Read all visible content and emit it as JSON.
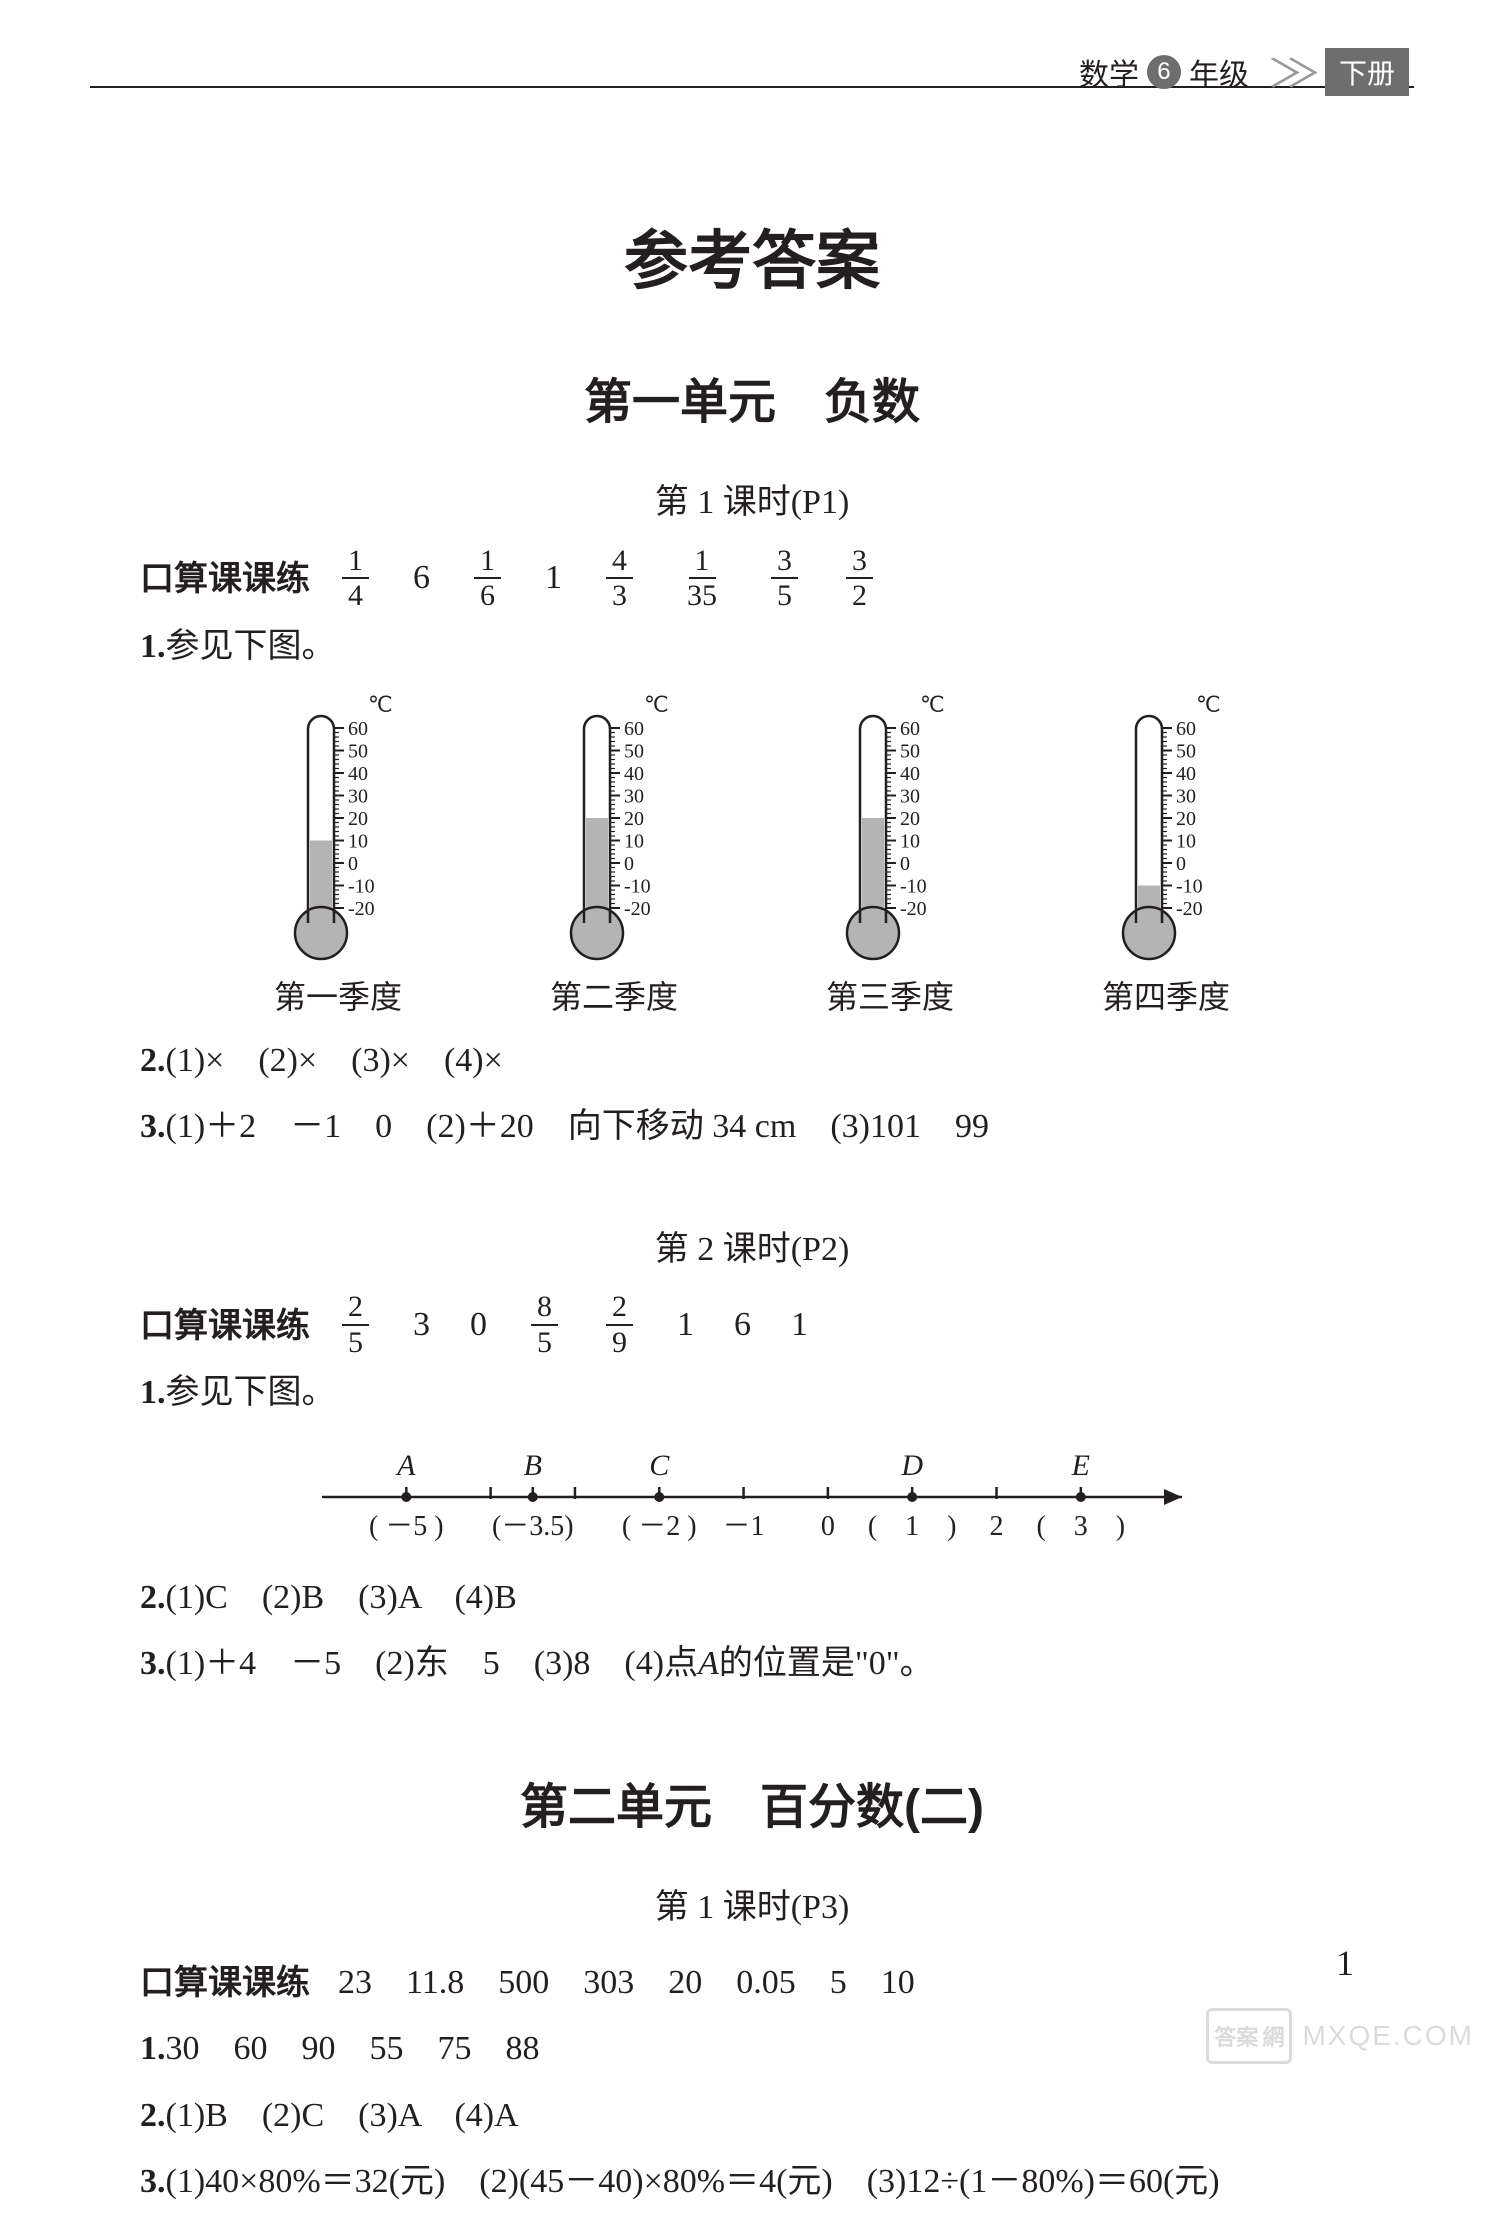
{
  "header": {
    "subject": "数学",
    "grade_num": "6",
    "grade_suffix": "年级",
    "volume": "下册"
  },
  "main_title": "参考答案",
  "unit1": {
    "title": "第一单元　负数",
    "lesson1": {
      "heading": "第 1 课时(P1)",
      "kousuan_label": "口算课课练",
      "kousuan_values": [
        {
          "type": "frac",
          "n": "1",
          "d": "4"
        },
        {
          "type": "txt",
          "v": "6"
        },
        {
          "type": "frac",
          "n": "1",
          "d": "6"
        },
        {
          "type": "txt",
          "v": "1"
        },
        {
          "type": "frac",
          "n": "4",
          "d": "3"
        },
        {
          "type": "frac",
          "n": "1",
          "d": "35"
        },
        {
          "type": "frac",
          "n": "3",
          "d": "5"
        },
        {
          "type": "frac",
          "n": "3",
          "d": "2"
        }
      ],
      "q1_label": "1.",
      "q1_text": " 参见下图。",
      "thermometers": {
        "unit_label": "℃",
        "scale_labels": [
          "60",
          "50",
          "40",
          "30",
          "20",
          "10",
          "0",
          "-10",
          "-20"
        ],
        "scale_min": -20,
        "scale_max": 60,
        "fill_color": "#b4b4b4",
        "tube_stroke": "#231f20",
        "items": [
          {
            "caption": "第一季度",
            "value": 10
          },
          {
            "caption": "第二季度",
            "value": 20
          },
          {
            "caption": "第三季度",
            "value": 20
          },
          {
            "caption": "第四季度",
            "value": -10
          }
        ]
      },
      "q2": "2. (1)×　(2)×　(3)×　(4)×",
      "q3": "3. (1)＋2　－1　0　(2)＋20　向下移动 34 cm　(3)101　99"
    },
    "lesson2": {
      "heading": "第 2 课时(P2)",
      "kousuan_label": "口算课课练",
      "kousuan_values": [
        {
          "type": "frac",
          "n": "2",
          "d": "5"
        },
        {
          "type": "txt",
          "v": "3"
        },
        {
          "type": "txt",
          "v": "0"
        },
        {
          "type": "frac",
          "n": "8",
          "d": "5"
        },
        {
          "type": "frac",
          "n": "2",
          "d": "9"
        },
        {
          "type": "txt",
          "v": "1"
        },
        {
          "type": "txt",
          "v": "6"
        },
        {
          "type": "txt",
          "v": "1"
        }
      ],
      "q1_label": "1.",
      "q1_text": " 参见下图。",
      "number_line": {
        "min": -6,
        "max": 4.2,
        "ticks": [
          -5,
          -4,
          -3,
          -2,
          -1,
          0,
          1,
          2,
          3
        ],
        "halftick": -3.5,
        "points": [
          {
            "label": "A",
            "x": -5,
            "below": "( －5 )"
          },
          {
            "label": "B",
            "x": -3.5,
            "below": "(－3.5)"
          },
          {
            "label": "C",
            "x": -2,
            "below": "( －2 )"
          },
          {
            "label": "",
            "x": -1,
            "below": "－1",
            "plain": true
          },
          {
            "label": "",
            "x": 0,
            "below": "0",
            "plain": true
          },
          {
            "label": "D",
            "x": 1,
            "below": "(　1　)"
          },
          {
            "label": "",
            "x": 2,
            "below": "2",
            "plain": true
          },
          {
            "label": "E",
            "x": 3,
            "below": "(　3　)"
          }
        ],
        "stroke": "#231f20"
      },
      "q2": "2. (1)C　(2)B　(3)A　(4)B",
      "q3_pre": "3. (1)＋4　－5　(2)东　5　(3)8　(4)点 ",
      "q3_ital": "A",
      "q3_post": " 的位置是\"0\"。"
    }
  },
  "unit2": {
    "title": "第二单元　百分数(二)",
    "lesson1": {
      "heading": "第 1 课时(P3)",
      "kousuan_label": "口算课课练",
      "kousuan_text": "23　11.8　500　303　20　0.05　5　10",
      "q1": "1. 30　60　90　55　75　88",
      "q2": "2. (1)B　(2)C　(3)A　(4)A",
      "q3": "3. (1)40×80%＝32(元)　(2)(45－40)×80%＝4(元)　(3)12÷(1－80%)＝60(元)"
    }
  },
  "page_number": "1",
  "watermark": {
    "badge_zh": "答案",
    "badge_pin": "網",
    "site": "MXQE.COM"
  },
  "colors": {
    "text": "#231f20",
    "gray": "#6e6e6e",
    "fill": "#b4b4b4",
    "bg": "#ffffff"
  }
}
